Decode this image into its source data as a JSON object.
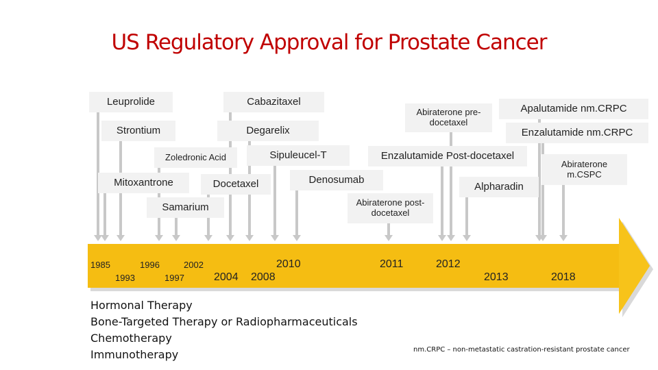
{
  "title": "US Regulatory Approval for Prostate Cancer",
  "drugs": {
    "leuprolide": "Leuprolide",
    "cabazitaxel": "Cabazitaxel",
    "strontium": "Strontium",
    "degarelix": "Degarelix",
    "zoledronic_acid": "Zoledronic Acid",
    "sipuleucel_t": "Sipuleucel-T",
    "mitoxantrone": "Mitoxantrone",
    "docetaxel": "Docetaxel",
    "denosumab": "Denosumab",
    "samarium": "Samarium",
    "abiraterone_pre": "Abiraterone pre-docetaxel",
    "apalutamide": "Apalutamide nm.CRPC",
    "enzalutamide_nmcrpc": "Enzalutamide nm.CRPC",
    "enzalutamide_post": "Enzalutamide Post-docetaxel",
    "abiraterone_mcspc": "Abiraterone m.CSPC",
    "alpharadin": "Alpharadin",
    "abiraterone_post": "Abiraterone post-docetaxel"
  },
  "years": {
    "y1985": "1985",
    "y1993": "1993",
    "y1996": "1996",
    "y1997": "1997",
    "y2002": "2002",
    "y2004": "2004",
    "y2008": "2008",
    "y2010": "2010",
    "y2011": "2011",
    "y2012": "2012",
    "y2013": "2013",
    "y2018": "2018"
  },
  "legend": [
    "Hormonal Therapy",
    "Bone-Targeted Therapy or Radiopharmaceuticals",
    "Chemotherapy",
    "Immunotherapy"
  ],
  "footnote": "nm.CRPC – non-metastatic castration-resistant prostate cancer",
  "colors": {
    "title": "#c00000",
    "timeline_band": "#f5bd12",
    "arrow_head": "#f7c31a",
    "connector": "#c8c8c8",
    "label_bg": "#f2f2f2"
  }
}
